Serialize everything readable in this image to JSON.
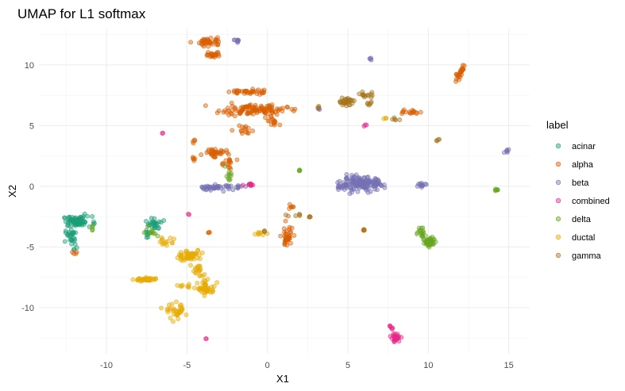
{
  "chart_data": {
    "type": "scatter",
    "title": "UMAP for L1 softmax",
    "xlabel": "X1",
    "ylabel": "X2",
    "xlim": [
      -14.2,
      16.3
    ],
    "ylim": [
      -13.8,
      13
    ],
    "xticks": [
      -10,
      -5,
      0,
      5,
      10,
      15
    ],
    "yticks": [
      -10,
      -5,
      0,
      5,
      10
    ],
    "xtick_labels": [
      "-10",
      "-5",
      "0",
      "5",
      "10",
      "15"
    ],
    "ytick_labels": [
      "-10",
      "-5",
      "0",
      "5",
      "10"
    ],
    "grid": true,
    "legend_position": "right",
    "legend_title": "label",
    "series": [
      {
        "name": "acinar",
        "color": "#1b9e77",
        "clusters": [
          {
            "x": -11.8,
            "y": -2.9,
            "sx": 0.75,
            "sy": 0.35,
            "n": 70
          },
          {
            "x": -12.2,
            "y": -4.3,
            "sx": 0.3,
            "sy": 0.8,
            "n": 30
          },
          {
            "x": -7.0,
            "y": -3.1,
            "sx": 0.35,
            "sy": 0.4,
            "n": 26
          },
          {
            "x": -7.4,
            "y": -3.9,
            "sx": 0.2,
            "sy": 0.3,
            "n": 8
          }
        ]
      },
      {
        "name": "alpha",
        "color": "#d95f02",
        "clusters": [
          {
            "x": -3.6,
            "y": 11.9,
            "sx": 0.6,
            "sy": 0.3,
            "n": 40
          },
          {
            "x": -3.3,
            "y": 10.9,
            "sx": 0.45,
            "sy": 0.22,
            "n": 22
          },
          {
            "x": -1.3,
            "y": 7.8,
            "sx": 0.9,
            "sy": 0.2,
            "n": 36
          },
          {
            "x": -0.9,
            "y": 6.3,
            "sx": 1.8,
            "sy": 0.35,
            "n": 110
          },
          {
            "x": 0.3,
            "y": 5.4,
            "sx": 0.3,
            "sy": 0.5,
            "n": 16
          },
          {
            "x": -1.3,
            "y": 4.6,
            "sx": 0.6,
            "sy": 0.4,
            "n": 14
          },
          {
            "x": -3.3,
            "y": 2.8,
            "sx": 0.55,
            "sy": 0.25,
            "n": 36
          },
          {
            "x": -2.5,
            "y": 1.9,
            "sx": 0.35,
            "sy": 0.5,
            "n": 16
          },
          {
            "x": -4.6,
            "y": 2.2,
            "sx": 0.2,
            "sy": 0.2,
            "n": 5
          },
          {
            "x": 1.2,
            "y": -4.2,
            "sx": 0.3,
            "sy": 0.75,
            "n": 40
          },
          {
            "x": 1.5,
            "y": -1.7,
            "sx": 0.2,
            "sy": 0.15,
            "n": 6
          },
          {
            "x": 12.1,
            "y": 9.6,
            "sx": 0.15,
            "sy": 0.3,
            "n": 14
          },
          {
            "x": 11.8,
            "y": 9.0,
            "sx": 0.12,
            "sy": 0.25,
            "n": 10
          },
          {
            "x": 8.9,
            "y": 6.1,
            "sx": 0.4,
            "sy": 0.15,
            "n": 16
          },
          {
            "x": -12.0,
            "y": -5.5,
            "sx": 0.3,
            "sy": 0.1,
            "n": 4
          },
          {
            "x": -4.6,
            "y": 3.7,
            "sx": 0.1,
            "sy": 0.2,
            "n": 4
          },
          {
            "x": -3.6,
            "y": -3.8,
            "sx": 0.1,
            "sy": 0.1,
            "n": 3
          },
          {
            "x": 6.0,
            "y": -3.6,
            "sx": 0.05,
            "sy": 0.05,
            "n": 2
          }
        ]
      },
      {
        "name": "beta",
        "color": "#7570b3",
        "clusters": [
          {
            "x": 5.9,
            "y": 0.2,
            "sx": 1.1,
            "sy": 0.45,
            "n": 150
          },
          {
            "x": 4.5,
            "y": -0.1,
            "sx": 0.35,
            "sy": 0.15,
            "n": 12
          },
          {
            "x": -3.3,
            "y": -0.1,
            "sx": 0.9,
            "sy": 0.2,
            "n": 40
          },
          {
            "x": -1.8,
            "y": 0.0,
            "sx": 0.35,
            "sy": 0.2,
            "n": 10
          },
          {
            "x": 9.6,
            "y": 0.1,
            "sx": 0.25,
            "sy": 0.12,
            "n": 12
          },
          {
            "x": -1.8,
            "y": 12.0,
            "sx": 0.25,
            "sy": 0.08,
            "n": 8
          },
          {
            "x": 6.4,
            "y": 10.5,
            "sx": 0.05,
            "sy": 0.08,
            "n": 4
          },
          {
            "x": 14.8,
            "y": 2.9,
            "sx": 0.2,
            "sy": 0.12,
            "n": 6
          },
          {
            "x": 3.2,
            "y": 6.4,
            "sx": 0.05,
            "sy": 0.08,
            "n": 3
          }
        ]
      },
      {
        "name": "combined",
        "color": "#e7298a",
        "clusters": [
          {
            "x": 8.0,
            "y": -12.5,
            "sx": 0.25,
            "sy": 0.3,
            "n": 30
          },
          {
            "x": 7.7,
            "y": -11.7,
            "sx": 0.1,
            "sy": 0.15,
            "n": 4
          },
          {
            "x": -1.1,
            "y": 0.2,
            "sx": 0.3,
            "sy": 0.1,
            "n": 10
          },
          {
            "x": -6.5,
            "y": 4.4,
            "sx": 0.05,
            "sy": 0.05,
            "n": 2
          },
          {
            "x": -4.9,
            "y": -2.3,
            "sx": 0.05,
            "sy": 0.05,
            "n": 2
          },
          {
            "x": -3.8,
            "y": -12.6,
            "sx": 0.05,
            "sy": 0.05,
            "n": 2
          },
          {
            "x": 6.1,
            "y": 5.0,
            "sx": 0.15,
            "sy": 0.1,
            "n": 3
          },
          {
            "x": 7.6,
            "y": -11.5,
            "sx": 0.05,
            "sy": 0.05,
            "n": 2
          }
        ]
      },
      {
        "name": "delta",
        "color": "#66a61e",
        "clusters": [
          {
            "x": 10.1,
            "y": -4.6,
            "sx": 0.35,
            "sy": 0.4,
            "n": 40
          },
          {
            "x": 9.6,
            "y": -3.7,
            "sx": 0.2,
            "sy": 0.35,
            "n": 16
          },
          {
            "x": 14.2,
            "y": -0.3,
            "sx": 0.12,
            "sy": 0.08,
            "n": 7
          },
          {
            "x": 2.0,
            "y": 1.3,
            "sx": 0.05,
            "sy": 0.08,
            "n": 4
          },
          {
            "x": -2.4,
            "y": 1.0,
            "sx": 0.2,
            "sy": 0.5,
            "n": 10
          },
          {
            "x": -7.2,
            "y": -3.8,
            "sx": 0.35,
            "sy": 0.3,
            "n": 10
          },
          {
            "x": -10.9,
            "y": -3.4,
            "sx": 0.08,
            "sy": 0.2,
            "n": 4
          }
        ]
      },
      {
        "name": "ductal",
        "color": "#e6ab02",
        "clusters": [
          {
            "x": -4.8,
            "y": -5.7,
            "sx": 0.6,
            "sy": 0.4,
            "n": 55
          },
          {
            "x": -3.8,
            "y": -8.4,
            "sx": 0.45,
            "sy": 0.45,
            "n": 45
          },
          {
            "x": -4.3,
            "y": -7.0,
            "sx": 0.3,
            "sy": 0.45,
            "n": 18
          },
          {
            "x": -7.5,
            "y": -7.7,
            "sx": 0.6,
            "sy": 0.15,
            "n": 36
          },
          {
            "x": -5.6,
            "y": -10.3,
            "sx": 0.55,
            "sy": 0.5,
            "n": 34
          },
          {
            "x": -5.2,
            "y": -8.2,
            "sx": 0.3,
            "sy": 0.1,
            "n": 8
          },
          {
            "x": -6.3,
            "y": -4.5,
            "sx": 0.5,
            "sy": 0.35,
            "n": 14
          },
          {
            "x": -0.5,
            "y": -3.9,
            "sx": 0.3,
            "sy": 0.1,
            "n": 8
          },
          {
            "x": 7.3,
            "y": 5.6,
            "sx": 0.1,
            "sy": 0.05,
            "n": 3
          }
        ]
      },
      {
        "name": "gamma",
        "color": "#a6761d",
        "clusters": [
          {
            "x": 4.9,
            "y": 7.0,
            "sx": 0.4,
            "sy": 0.25,
            "n": 36
          },
          {
            "x": 6.2,
            "y": 7.5,
            "sx": 0.45,
            "sy": 0.25,
            "n": 14
          },
          {
            "x": 6.3,
            "y": 6.8,
            "sx": 0.2,
            "sy": 0.12,
            "n": 6
          },
          {
            "x": 7.9,
            "y": 5.5,
            "sx": 0.35,
            "sy": 0.1,
            "n": 5
          },
          {
            "x": 10.6,
            "y": 3.8,
            "sx": 0.1,
            "sy": 0.06,
            "n": 4
          },
          {
            "x": 1.5,
            "y": -2.4,
            "sx": 0.5,
            "sy": 0.1,
            "n": 6
          },
          {
            "x": 2.7,
            "y": -2.5,
            "sx": 0.15,
            "sy": 0.06,
            "n": 4
          },
          {
            "x": 6.0,
            "y": -3.6,
            "sx": 0.05,
            "sy": 0.06,
            "n": 3
          },
          {
            "x": 3.2,
            "y": 6.5,
            "sx": 0.05,
            "sy": 0.08,
            "n": 3
          },
          {
            "x": -0.2,
            "y": -3.7,
            "sx": 0.1,
            "sy": 0.06,
            "n": 3
          }
        ]
      }
    ]
  }
}
